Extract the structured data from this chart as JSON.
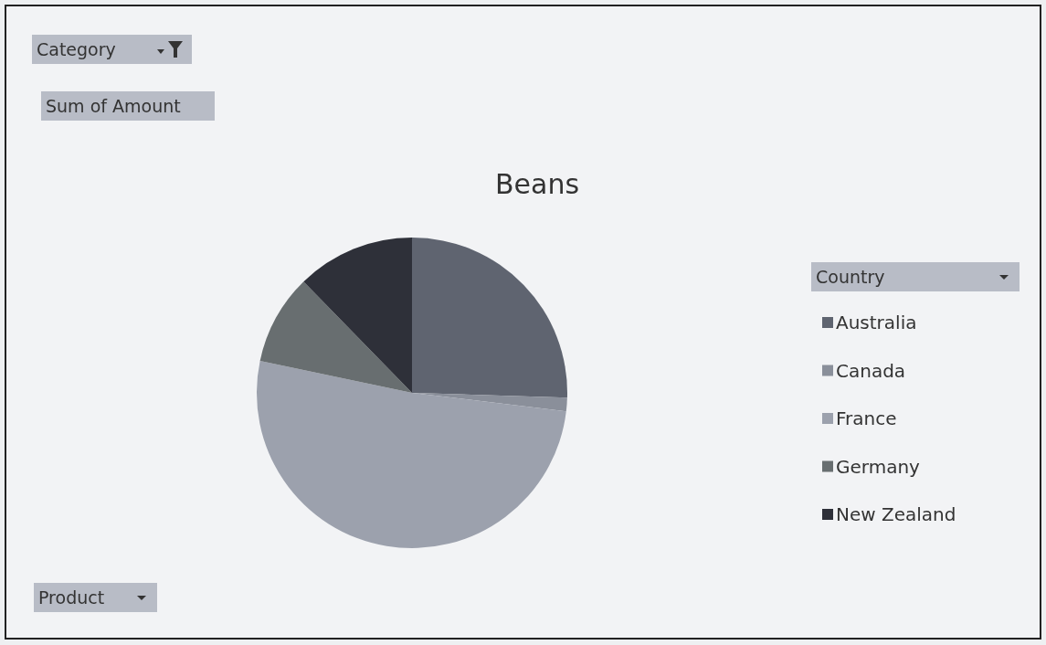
{
  "chart_data": {
    "type": "pie",
    "title": "Beans",
    "legend_title": "Country",
    "categories": [
      "Australia",
      "Canada",
      "France",
      "Germany",
      "New Zealand"
    ],
    "values": [
      25.5,
      1.4,
      51.4,
      9.4,
      12.3
    ],
    "colors": [
      "#5f6470",
      "#8a8f9a",
      "#9ca1ad",
      "#686e70",
      "#2e3039"
    ],
    "legend": "right",
    "annotations": [
      "Category",
      "Sum of Amount",
      "Product"
    ]
  }
}
